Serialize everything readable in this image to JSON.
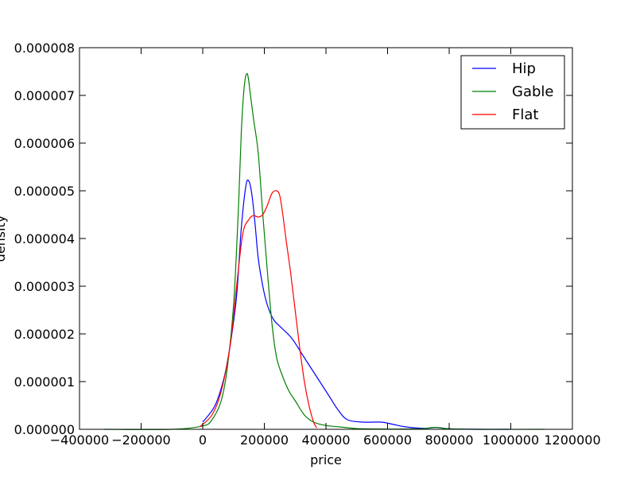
{
  "chart_data": {
    "type": "line",
    "title": "",
    "xlabel": "price",
    "ylabel": "density",
    "xlim": [
      -400000,
      1200000
    ],
    "ylim": [
      0,
      8e-06
    ],
    "x_ticks": [
      -400000,
      -200000,
      0,
      200000,
      400000,
      600000,
      800000,
      1000000,
      1200000
    ],
    "x_tick_labels": [
      "−400000",
      "−200000",
      "0",
      "200000",
      "400000",
      "600000",
      "800000",
      "1000000",
      "1200000"
    ],
    "y_ticks": [
      0,
      1e-06,
      2e-06,
      3e-06,
      4e-06,
      5e-06,
      6e-06,
      7e-06,
      8e-06
    ],
    "y_tick_labels": [
      "0.000000",
      "0.000001",
      "0.000002",
      "0.000003",
      "0.000004",
      "0.000005",
      "0.000006",
      "0.000007",
      "0.000008"
    ],
    "grid": false,
    "legend_position": "top-right",
    "series": [
      {
        "name": "Hip",
        "color": "#0000ff",
        "points": [
          [
            0,
            1.5e-07
          ],
          [
            40000,
            5e-07
          ],
          [
            70000,
            1.1e-06
          ],
          [
            90000,
            1.8e-06
          ],
          [
            110000,
            2.8e-06
          ],
          [
            125000,
            4.2e-06
          ],
          [
            140000,
            5.1e-06
          ],
          [
            150000,
            5.2e-06
          ],
          [
            160000,
            4.9e-06
          ],
          [
            170000,
            4.3e-06
          ],
          [
            180000,
            3.6e-06
          ],
          [
            195000,
            3e-06
          ],
          [
            210000,
            2.6e-06
          ],
          [
            230000,
            2.3e-06
          ],
          [
            260000,
            2.1e-06
          ],
          [
            290000,
            1.9e-06
          ],
          [
            330000,
            1.5e-06
          ],
          [
            370000,
            1.1e-06
          ],
          [
            410000,
            7e-07
          ],
          [
            440000,
            4e-07
          ],
          [
            470000,
            2e-07
          ],
          [
            520000,
            1.5e-07
          ],
          [
            580000,
            1.5e-07
          ],
          [
            620000,
            1e-07
          ],
          [
            660000,
            5e-08
          ],
          [
            720000,
            2e-08
          ],
          [
            760000,
            4e-08
          ],
          [
            800000,
            1e-08
          ],
          [
            900000,
            0.0
          ],
          [
            1000000,
            0.0
          ]
        ]
      },
      {
        "name": "Gable",
        "color": "#008000",
        "points": [
          [
            -320000,
            0.0
          ],
          [
            -100000,
            0.0
          ],
          [
            0,
            7e-08
          ],
          [
            30000,
            2e-07
          ],
          [
            60000,
            6e-07
          ],
          [
            80000,
            1.3e-06
          ],
          [
            100000,
            2.6e-06
          ],
          [
            115000,
            4.5e-06
          ],
          [
            125000,
            6.2e-06
          ],
          [
            135000,
            7.2e-06
          ],
          [
            145000,
            7.45e-06
          ],
          [
            155000,
            7e-06
          ],
          [
            165000,
            6.5e-06
          ],
          [
            180000,
            5.8e-06
          ],
          [
            195000,
            4.5e-06
          ],
          [
            210000,
            3.3e-06
          ],
          [
            225000,
            2.2e-06
          ],
          [
            240000,
            1.5e-06
          ],
          [
            260000,
            1.1e-06
          ],
          [
            280000,
            8e-07
          ],
          [
            300000,
            6e-07
          ],
          [
            330000,
            3e-07
          ],
          [
            360000,
            1.5e-07
          ],
          [
            400000,
            8e-08
          ],
          [
            460000,
            4e-08
          ],
          [
            520000,
            1e-08
          ],
          [
            700000,
            1e-08
          ],
          [
            750000,
            4e-08
          ],
          [
            800000,
            1e-08
          ],
          [
            900000,
            0.0
          ],
          [
            1110000,
            0.0
          ]
        ]
      },
      {
        "name": "Flat",
        "color": "#ff0000",
        "points": [
          [
            -10000,
            5e-08
          ],
          [
            30000,
            3e-07
          ],
          [
            60000,
            8e-07
          ],
          [
            90000,
            1.8e-06
          ],
          [
            110000,
            3e-06
          ],
          [
            130000,
            4.1e-06
          ],
          [
            150000,
            4.4e-06
          ],
          [
            165000,
            4.48e-06
          ],
          [
            180000,
            4.45e-06
          ],
          [
            195000,
            4.5e-06
          ],
          [
            210000,
            4.7e-06
          ],
          [
            225000,
            4.95e-06
          ],
          [
            240000,
            5e-06
          ],
          [
            250000,
            4.9e-06
          ],
          [
            260000,
            4.5e-06
          ],
          [
            270000,
            4e-06
          ],
          [
            285000,
            3.3e-06
          ],
          [
            300000,
            2.5e-06
          ],
          [
            315000,
            1.7e-06
          ],
          [
            330000,
            1e-06
          ],
          [
            345000,
            5e-07
          ],
          [
            360000,
            1.5e-07
          ],
          [
            370000,
            3e-08
          ]
        ]
      }
    ]
  }
}
